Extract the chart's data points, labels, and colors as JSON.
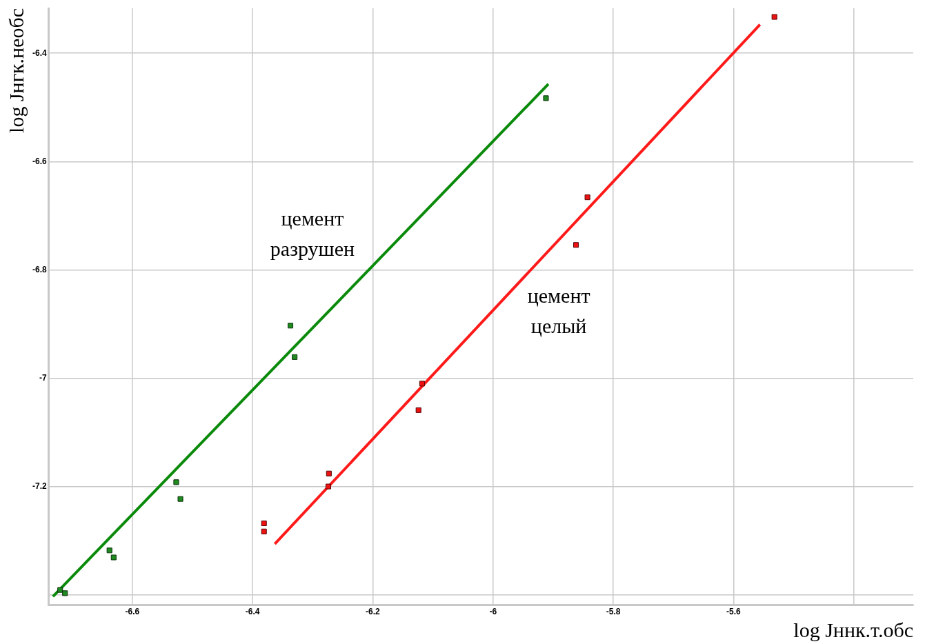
{
  "chart_data": {
    "type": "scatter",
    "xlabel": "log Jннк.т.обс",
    "ylabel": "log Jнгк.необс",
    "xlim": [
      -6.739,
      -5.301
    ],
    "ylim": [
      -7.419,
      -6.317
    ],
    "xticks": [
      -6.6,
      -6.4,
      -6.2,
      -6,
      -5.8,
      -5.6,
      {
        "value": -5.4,
        "label": null
      }
    ],
    "yticks": [
      {
        "value": -7.4,
        "label": null
      },
      -7.2,
      -7,
      -6.8,
      -6.6,
      -6.4
    ],
    "grid": true,
    "marker": "square",
    "line_style": "solid",
    "series": [
      {
        "type": "scatter",
        "color": "#1f8a1f",
        "x": [
          -6.72,
          -6.712,
          -6.638,
          -6.631,
          -6.527,
          -6.52,
          -6.337,
          -6.33,
          -5.912
        ],
        "values": [
          -7.391,
          -7.397,
          -7.318,
          -7.331,
          -7.192,
          -7.223,
          -6.903,
          -6.961,
          -6.483
        ]
      },
      {
        "type": "line",
        "marker": "none",
        "color": "#0a8a0a",
        "x": [
          -6.732,
          -5.908
        ],
        "values": [
          -7.403,
          -6.457
        ]
      },
      {
        "type": "scatter",
        "color": "#ee1111",
        "x": [
          -6.381,
          -6.381,
          -6.273,
          -6.274,
          -6.118,
          -6.124,
          -5.862,
          -5.843,
          -5.532
        ],
        "values": [
          -7.268,
          -7.283,
          -7.176,
          -7.2,
          -7.01,
          -7.059,
          -6.754,
          -6.666,
          -6.333
        ]
      },
      {
        "type": "line",
        "marker": "none",
        "color": "#ff1a1a",
        "x": [
          -6.363,
          -5.556
        ],
        "values": [
          -7.306,
          -6.347
        ]
      }
    ],
    "annotations": [
      "цемент\nразрушен",
      "цемент\nцелый"
    ]
  }
}
